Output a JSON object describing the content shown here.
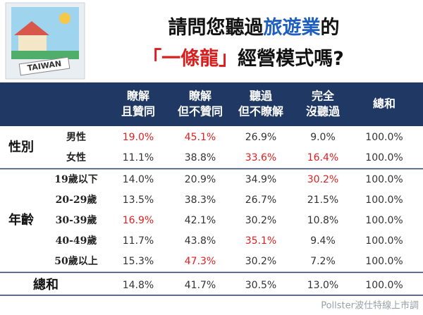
{
  "header": {
    "image_label": "TAIWAN",
    "title_line1": [
      {
        "text": "請問您聽過",
        "color": "#111111"
      },
      {
        "text": "旅遊業",
        "color": "#1f5fbf"
      },
      {
        "text": "的",
        "color": "#111111"
      }
    ],
    "title_line2": [
      {
        "text": "「一條龍」",
        "color": "#d91e1e"
      },
      {
        "text": "經營模式嗎?",
        "color": "#111111"
      }
    ]
  },
  "table": {
    "columns": [
      [
        "瞭解",
        "且贊同"
      ],
      [
        "瞭解",
        "但不贊同"
      ],
      [
        "聽過",
        "但不瞭解"
      ],
      [
        "完全",
        "沒聽過"
      ],
      [
        "總和"
      ]
    ],
    "highlight_color": "#e02020",
    "groups": [
      {
        "label": "性別",
        "rows": [
          {
            "label": "男性",
            "cells": [
              "19.0%",
              "45.1%",
              "26.9%",
              "9.0%",
              "100.0%"
            ],
            "red": [
              0,
              1
            ]
          },
          {
            "label": "女性",
            "cells": [
              "11.1%",
              "38.8%",
              "33.6%",
              "16.4%",
              "100.0%"
            ],
            "red": [
              2,
              3
            ]
          }
        ]
      },
      {
        "label": "年齡",
        "rows": [
          {
            "label": "19歲以下",
            "cells": [
              "14.0%",
              "20.9%",
              "34.9%",
              "30.2%",
              "100.0%"
            ],
            "red": [
              3
            ]
          },
          {
            "label": "20-29歲",
            "cells": [
              "13.5%",
              "38.3%",
              "26.7%",
              "21.5%",
              "100.0%"
            ],
            "red": []
          },
          {
            "label": "30-39歲",
            "cells": [
              "16.9%",
              "42.1%",
              "30.2%",
              "10.8%",
              "100.0%"
            ],
            "red": [
              0
            ]
          },
          {
            "label": "40-49歲",
            "cells": [
              "11.7%",
              "43.8%",
              "35.1%",
              "9.4%",
              "100.0%"
            ],
            "red": [
              2
            ]
          },
          {
            "label": "50歲以上",
            "cells": [
              "15.3%",
              "47.3%",
              "30.2%",
              "7.2%",
              "100.0%"
            ],
            "red": [
              1
            ]
          }
        ]
      }
    ],
    "total": {
      "label": "總和",
      "cells": [
        "14.8%",
        "41.7%",
        "30.5%",
        "13.0%",
        "100.0%"
      ]
    }
  },
  "footer": {
    "source": "Pollster波仕特線上市調"
  }
}
